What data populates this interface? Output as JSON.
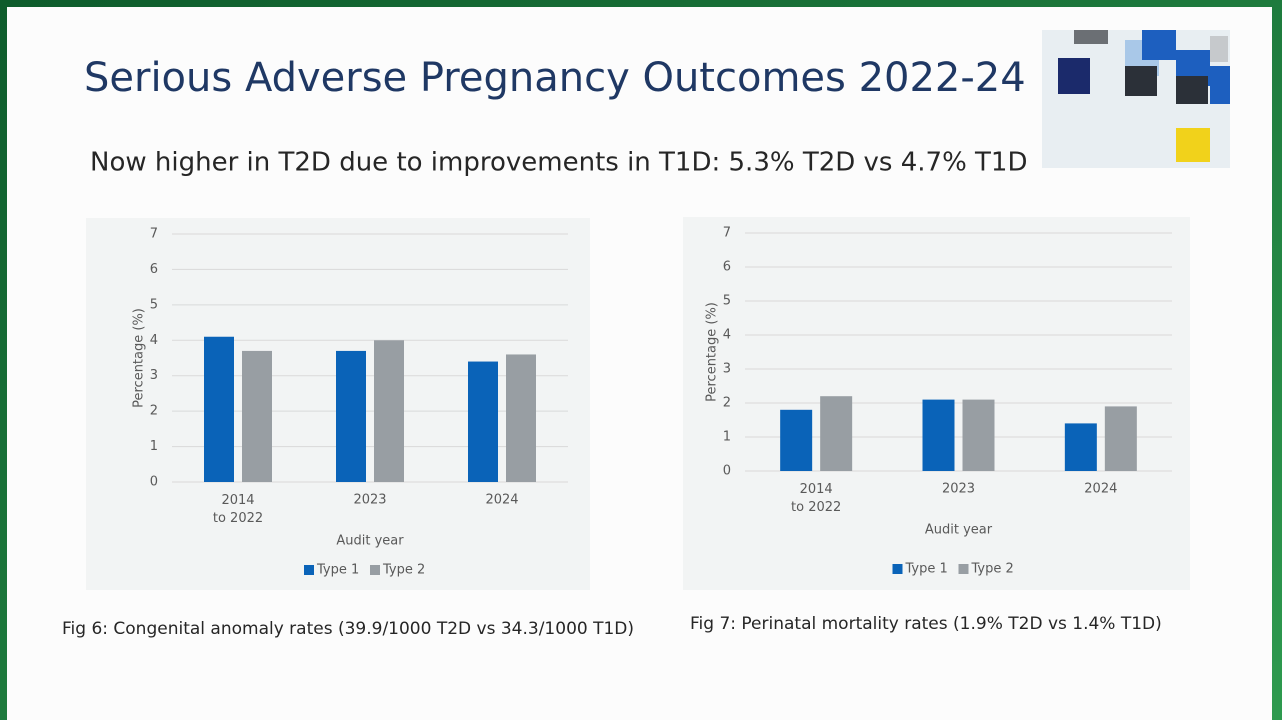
{
  "title": "Serious Adverse Pregnancy Outcomes 2022-24",
  "subtitle": "Now higher in T2D due to improvements in T1D: 5.3% T2D  vs 4.7% T1D",
  "chart_data": [
    {
      "type": "bar",
      "categories": [
        "2014\nto 2022",
        "2023",
        "2024"
      ],
      "series": [
        {
          "name": "Type 1",
          "color": "#0a63b8",
          "values": [
            4.1,
            3.7,
            3.4
          ]
        },
        {
          "name": "Type 2",
          "color": "#989ea3",
          "values": [
            3.7,
            4.0,
            3.6
          ]
        }
      ],
      "ylim": [
        0,
        7
      ],
      "yticks": [
        0,
        1,
        2,
        3,
        4,
        5,
        6,
        7
      ],
      "grid": true,
      "ylabel": "Percentage (%)",
      "xlabel": "Audit year",
      "legend": "bottom",
      "caption": "Fig 6: Congenital anomaly rates (39.9/1000 T2D vs 34.3/1000 T1D)"
    },
    {
      "type": "bar",
      "categories": [
        "2014\nto 2022",
        "2023",
        "2024"
      ],
      "series": [
        {
          "name": "Type 1",
          "color": "#0a63b8",
          "values": [
            1.8,
            2.1,
            1.4
          ]
        },
        {
          "name": "Type 2",
          "color": "#989ea3",
          "values": [
            2.2,
            2.1,
            1.9
          ]
        }
      ],
      "ylim": [
        0,
        7
      ],
      "yticks": [
        0,
        1,
        2,
        3,
        4,
        5,
        6,
        7
      ],
      "grid": true,
      "ylabel": "Percentage (%)",
      "xlabel": "Audit year",
      "legend": "bottom",
      "caption": "Fig 7: Perinatal mortality rates (1.9% T2D vs 1.4% T1D)"
    }
  ]
}
